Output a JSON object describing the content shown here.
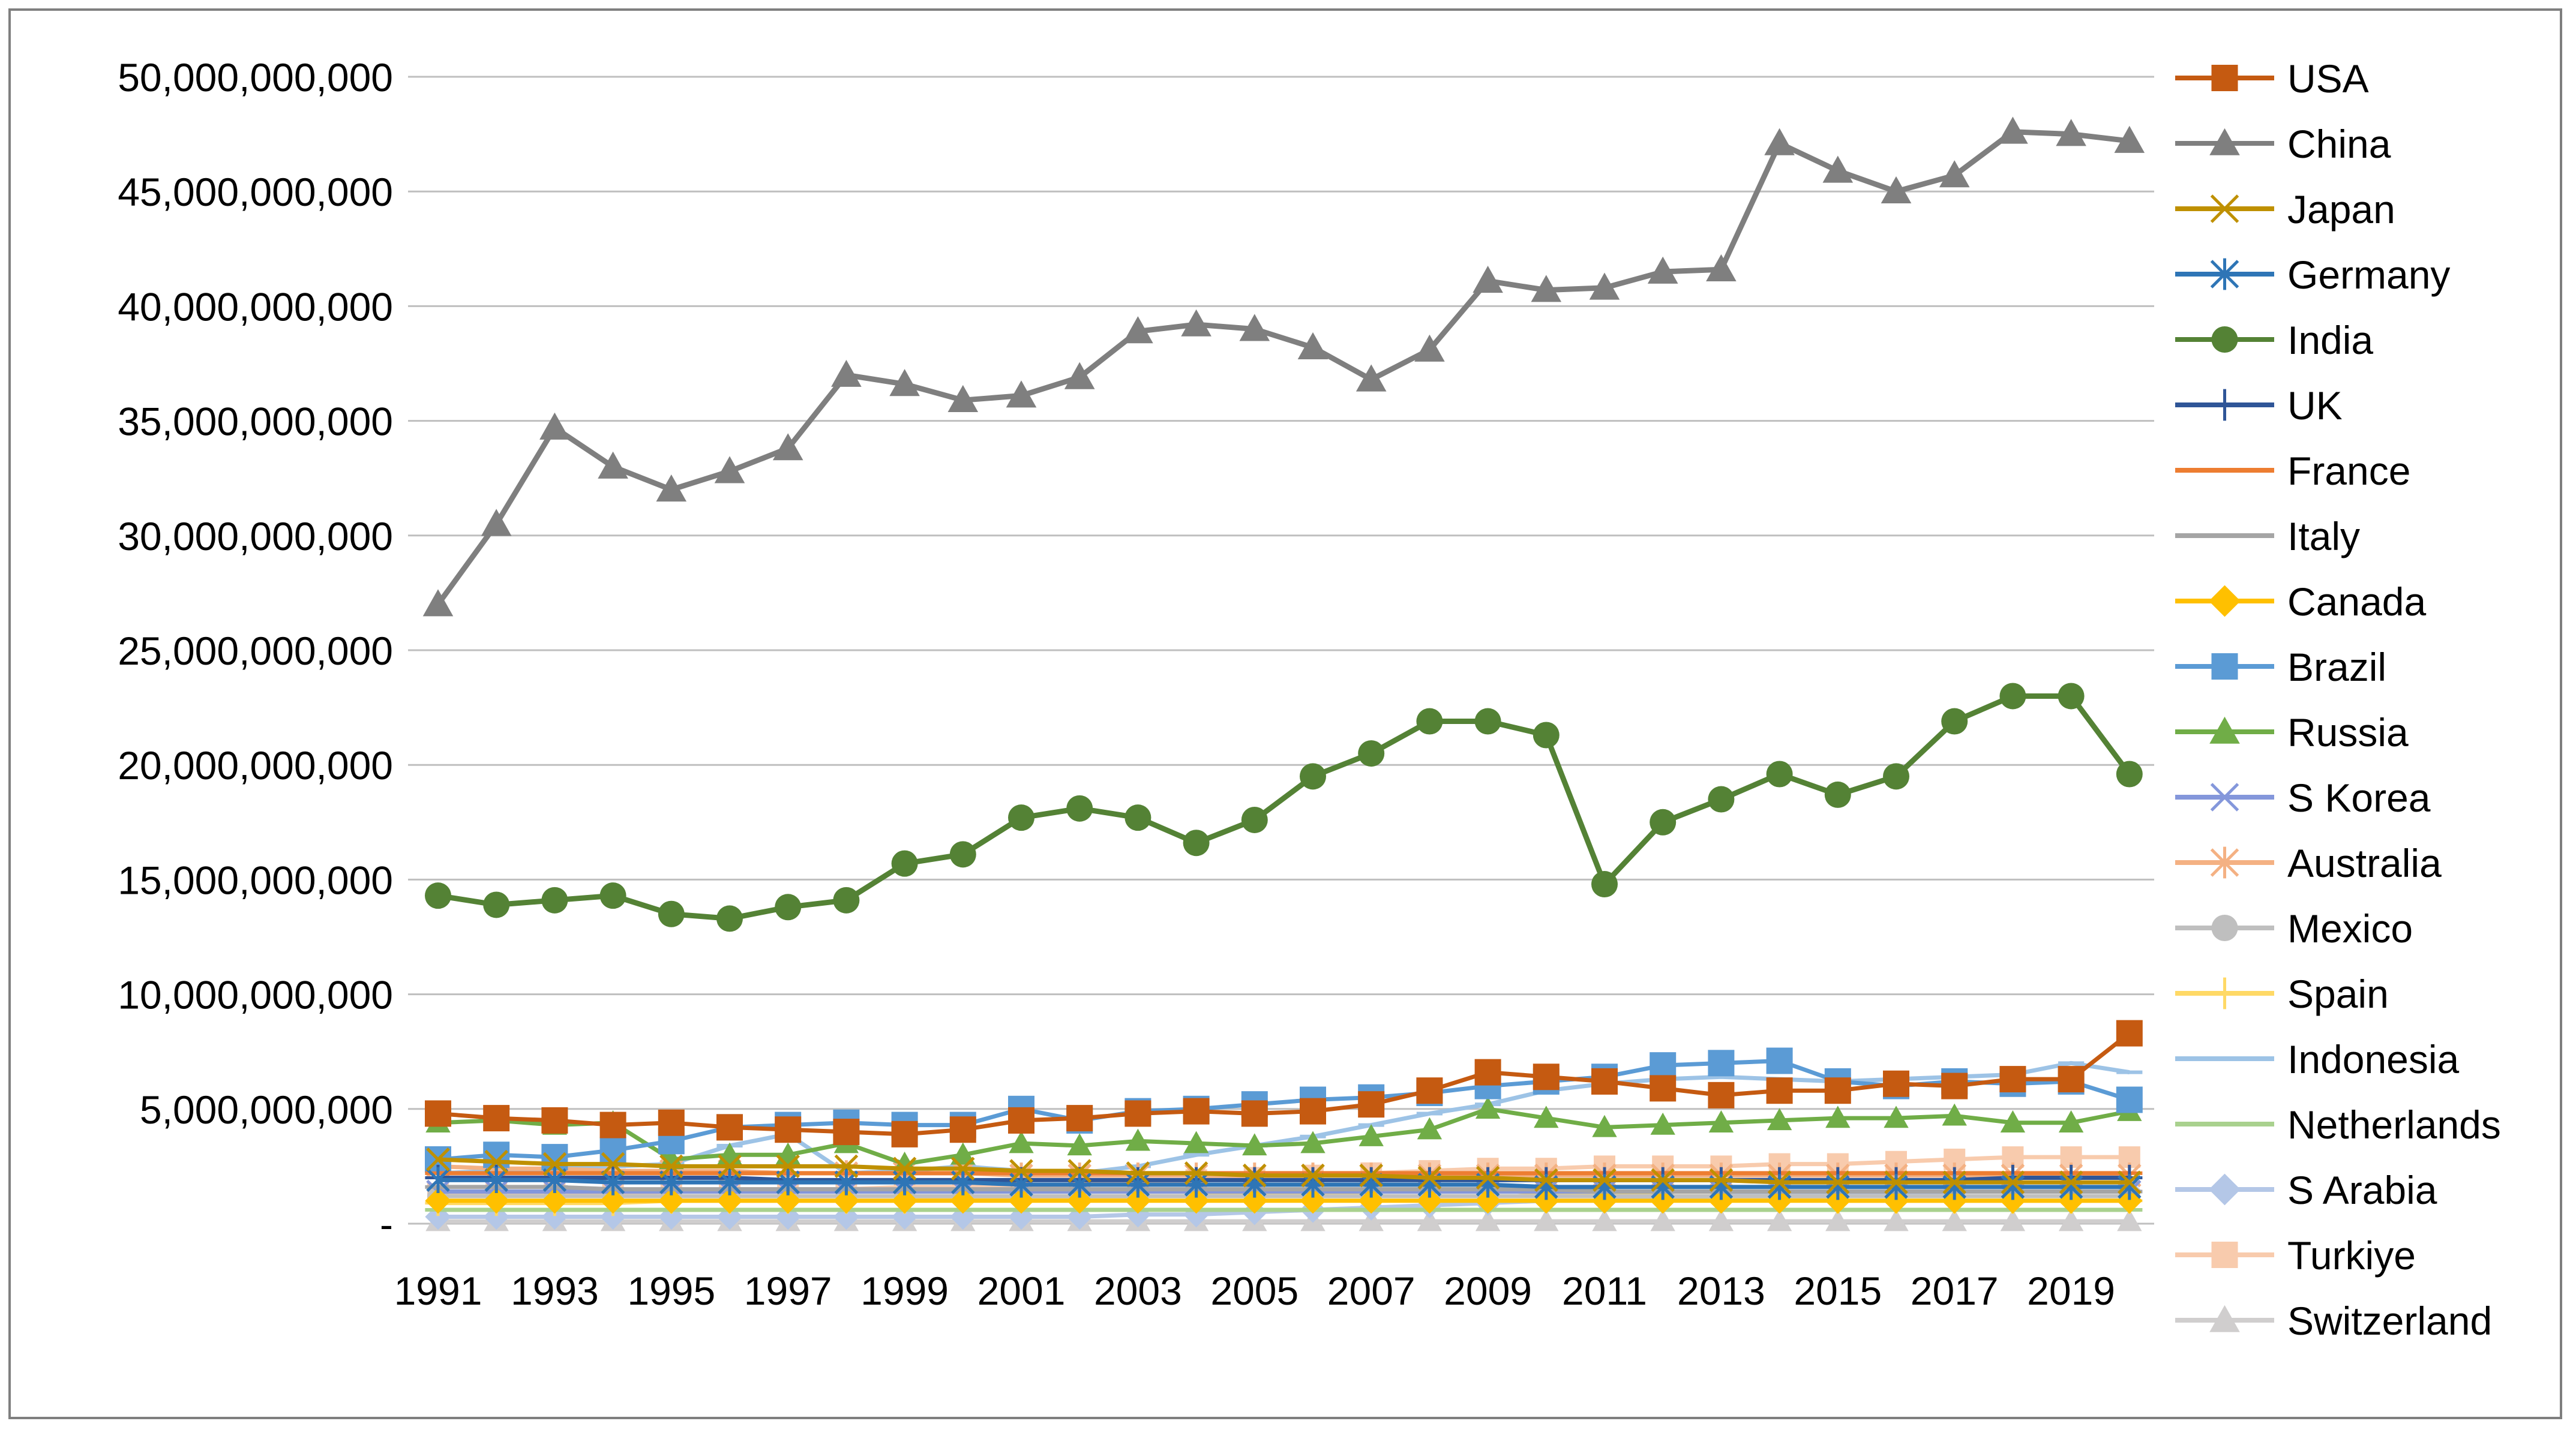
{
  "chart_data": {
    "type": "line",
    "title": "",
    "xlabel": "",
    "ylabel": "",
    "ylim": [
      0,
      50000000000
    ],
    "y_ticks": [
      {
        "value": 0,
        "label": "-"
      },
      {
        "value": 5000000000,
        "label": "5,000,000,000"
      },
      {
        "value": 10000000000,
        "label": "10,000,000,000"
      },
      {
        "value": 15000000000,
        "label": "15,000,000,000"
      },
      {
        "value": 20000000000,
        "label": "20,000,000,000"
      },
      {
        "value": 25000000000,
        "label": "25,000,000,000"
      },
      {
        "value": 30000000000,
        "label": "30,000,000,000"
      },
      {
        "value": 35000000000,
        "label": "35,000,000,000"
      },
      {
        "value": 40000000000,
        "label": "40,000,000,000"
      },
      {
        "value": 45000000000,
        "label": "45,000,000,000"
      },
      {
        "value": 50000000000,
        "label": "50,000,000,000"
      }
    ],
    "grid": true,
    "legend_position": "right",
    "x": [
      1991,
      1992,
      1993,
      1994,
      1995,
      1996,
      1997,
      1998,
      1999,
      2000,
      2001,
      2002,
      2003,
      2004,
      2005,
      2006,
      2007,
      2008,
      2009,
      2010,
      2011,
      2012,
      2013,
      2014,
      2015,
      2016,
      2017,
      2018,
      2019,
      2020
    ],
    "x_tick_labels": [
      "1991",
      "1993",
      "1995",
      "1997",
      "1999",
      "2001",
      "2003",
      "2005",
      "2007",
      "2009",
      "2011",
      "2013",
      "2015",
      "2017",
      "2019"
    ],
    "units": "billion",
    "series": [
      {
        "name": "USA",
        "color": "#C55A11",
        "marker": "square",
        "values": [
          4.8,
          4.6,
          4.5,
          4.3,
          4.4,
          4.2,
          4.1,
          4.0,
          3.9,
          4.1,
          4.5,
          4.6,
          4.8,
          4.9,
          4.8,
          4.9,
          5.2,
          5.8,
          6.6,
          6.4,
          6.2,
          5.9,
          5.6,
          5.8,
          5.8,
          6.1,
          6.0,
          6.3,
          6.3,
          8.3
        ]
      },
      {
        "name": "China",
        "color": "#7F7F7F",
        "marker": "triangle",
        "values": [
          27.0,
          30.5,
          34.7,
          33.0,
          32.0,
          32.8,
          33.8,
          37.0,
          36.6,
          35.9,
          36.1,
          36.9,
          38.9,
          39.2,
          39.0,
          38.2,
          36.8,
          38.1,
          41.1,
          40.7,
          40.8,
          41.5,
          41.6,
          47.1,
          45.9,
          45.0,
          45.7,
          47.6,
          47.5,
          47.2
        ]
      },
      {
        "name": "Japan",
        "color": "#BF9000",
        "marker": "x",
        "values": [
          2.8,
          2.7,
          2.6,
          2.6,
          2.5,
          2.5,
          2.5,
          2.5,
          2.4,
          2.4,
          2.3,
          2.3,
          2.2,
          2.2,
          2.1,
          2.1,
          2.1,
          2.0,
          2.0,
          1.9,
          1.9,
          1.9,
          1.9,
          1.8,
          1.8,
          1.8,
          1.8,
          1.8,
          1.8,
          1.8
        ]
      },
      {
        "name": "Germany",
        "color": "#2E75B6",
        "marker": "asterisk",
        "values": [
          1.9,
          1.9,
          1.9,
          1.8,
          1.8,
          1.8,
          1.8,
          1.8,
          1.8,
          1.8,
          1.7,
          1.7,
          1.7,
          1.7,
          1.7,
          1.7,
          1.7,
          1.7,
          1.7,
          1.6,
          1.6,
          1.6,
          1.6,
          1.6,
          1.6,
          1.6,
          1.6,
          1.6,
          1.6,
          1.6
        ]
      },
      {
        "name": "India",
        "color": "#548235",
        "marker": "circle",
        "values": [
          14.3,
          13.9,
          14.1,
          14.3,
          13.5,
          13.3,
          13.8,
          14.1,
          15.7,
          16.1,
          17.7,
          18.1,
          17.7,
          16.6,
          17.6,
          19.5,
          20.5,
          21.9,
          21.9,
          21.3,
          14.8,
          17.5,
          18.5,
          19.6,
          18.7,
          19.5,
          21.9,
          23.0,
          23.0,
          19.6
        ]
      },
      {
        "name": "UK",
        "color": "#2F5597",
        "marker": "plus",
        "values": [
          2.0,
          2.0,
          2.0,
          2.0,
          2.0,
          2.0,
          1.9,
          1.9,
          1.9,
          1.9,
          1.9,
          1.9,
          1.9,
          1.9,
          1.9,
          1.9,
          1.9,
          1.9,
          1.9,
          1.9,
          1.9,
          1.9,
          1.9,
          1.9,
          1.9,
          1.9,
          1.9,
          2.0,
          2.0,
          2.0
        ]
      },
      {
        "name": "France",
        "color": "#ED7D31",
        "marker": "dash",
        "values": [
          2.2,
          2.2,
          2.2,
          2.2,
          2.2,
          2.2,
          2.2,
          2.2,
          2.2,
          2.2,
          2.2,
          2.2,
          2.2,
          2.2,
          2.2,
          2.2,
          2.2,
          2.2,
          2.2,
          2.2,
          2.2,
          2.2,
          2.2,
          2.2,
          2.2,
          2.2,
          2.2,
          2.2,
          2.2,
          2.2
        ]
      },
      {
        "name": "Italy",
        "color": "#A5A5A5",
        "marker": "dash",
        "values": [
          1.6,
          1.6,
          1.6,
          1.5,
          1.5,
          1.5,
          1.5,
          1.5,
          1.5,
          1.5,
          1.5,
          1.5,
          1.5,
          1.5,
          1.5,
          1.5,
          1.5,
          1.5,
          1.5,
          1.5,
          1.4,
          1.4,
          1.4,
          1.4,
          1.4,
          1.4,
          1.4,
          1.4,
          1.4,
          1.4
        ]
      },
      {
        "name": "Canada",
        "color": "#FFC000",
        "marker": "diamond",
        "values": [
          1.0,
          1.0,
          1.0,
          1.0,
          1.0,
          1.0,
          1.0,
          1.0,
          1.0,
          1.0,
          1.0,
          1.0,
          1.0,
          1.0,
          1.0,
          1.0,
          1.0,
          1.0,
          1.0,
          1.0,
          1.0,
          1.0,
          1.0,
          1.0,
          1.0,
          1.0,
          1.0,
          1.0,
          1.0,
          1.0
        ]
      },
      {
        "name": "Brazil",
        "color": "#5B9BD5",
        "marker": "square",
        "values": [
          2.8,
          3.0,
          2.9,
          3.2,
          3.6,
          4.2,
          4.3,
          4.4,
          4.3,
          4.3,
          5.0,
          4.5,
          4.9,
          5.0,
          5.2,
          5.4,
          5.5,
          5.7,
          6.0,
          6.2,
          6.4,
          6.9,
          7.0,
          7.1,
          6.2,
          6.0,
          6.2,
          6.1,
          6.2,
          5.4
        ]
      },
      {
        "name": "Russia",
        "color": "#70AD47",
        "marker": "triangle",
        "values": [
          4.4,
          4.5,
          4.3,
          4.4,
          2.8,
          3.0,
          3.0,
          3.5,
          2.6,
          3.0,
          3.5,
          3.4,
          3.6,
          3.5,
          3.4,
          3.5,
          3.8,
          4.1,
          5.0,
          4.6,
          4.2,
          4.3,
          4.4,
          4.5,
          4.6,
          4.6,
          4.7,
          4.4,
          4.4,
          4.9
        ]
      },
      {
        "name": "S Korea",
        "color": "#8497DB",
        "marker": "x",
        "values": [
          1.4,
          1.4,
          1.4,
          1.4,
          1.4,
          1.4,
          1.4,
          1.4,
          1.4,
          1.4,
          1.4,
          1.4,
          1.4,
          1.4,
          1.4,
          1.4,
          1.4,
          1.4,
          1.4,
          1.4,
          1.4,
          1.4,
          1.4,
          1.4,
          1.4,
          1.4,
          1.4,
          1.4,
          1.4,
          1.4
        ]
      },
      {
        "name": "Australia",
        "color": "#F4B183",
        "marker": "asterisk",
        "values": [
          2.5,
          2.4,
          2.4,
          2.3,
          2.3,
          2.3,
          2.2,
          2.2,
          2.2,
          2.2,
          2.1,
          2.1,
          2.1,
          2.1,
          2.1,
          2.1,
          2.1,
          2.1,
          2.1,
          2.1,
          2.1,
          2.1,
          2.1,
          2.1,
          2.1,
          2.1,
          2.1,
          2.1,
          2.1,
          2.1
        ]
      },
      {
        "name": "Mexico",
        "color": "#BFBFBF",
        "marker": "circle",
        "values": [
          1.2,
          1.2,
          1.2,
          1.2,
          1.2,
          1.2,
          1.2,
          1.2,
          1.2,
          1.2,
          1.2,
          1.2,
          1.2,
          1.2,
          1.2,
          1.2,
          1.2,
          1.2,
          1.2,
          1.2,
          1.2,
          1.2,
          1.2,
          1.2,
          1.2,
          1.2,
          1.2,
          1.2,
          1.2,
          1.2
        ]
      },
      {
        "name": "Spain",
        "color": "#FFD966",
        "marker": "plus",
        "values": [
          0.9,
          0.9,
          0.9,
          0.9,
          1.0,
          1.0,
          1.0,
          1.0,
          1.0,
          1.1,
          1.1,
          1.1,
          1.2,
          1.2,
          1.3,
          1.3,
          1.4,
          1.4,
          1.5,
          1.3,
          1.3,
          1.2,
          1.2,
          1.1,
          1.0,
          1.0,
          1.0,
          1.0,
          1.0,
          1.0
        ]
      },
      {
        "name": "Indonesia",
        "color": "#9DC3E6",
        "marker": "dash",
        "values": [
          2.2,
          2.3,
          2.4,
          2.5,
          2.6,
          3.4,
          3.9,
          2.2,
          2.3,
          2.5,
          2.3,
          2.2,
          2.5,
          3.0,
          3.4,
          3.8,
          4.3,
          4.8,
          5.2,
          5.8,
          6.1,
          6.3,
          6.4,
          6.3,
          6.2,
          6.3,
          6.4,
          6.5,
          7.0,
          6.6
        ]
      },
      {
        "name": "Netherlands",
        "color": "#A9D18E",
        "marker": "dash",
        "values": [
          0.6,
          0.6,
          0.6,
          0.6,
          0.6,
          0.6,
          0.6,
          0.6,
          0.6,
          0.6,
          0.6,
          0.6,
          0.6,
          0.6,
          0.6,
          0.6,
          0.6,
          0.6,
          0.6,
          0.6,
          0.6,
          0.6,
          0.6,
          0.6,
          0.6,
          0.6,
          0.6,
          0.6,
          0.6,
          0.6
        ]
      },
      {
        "name": "S Arabia",
        "color": "#B4C7E7",
        "marker": "diamond",
        "values": [
          0.3,
          0.3,
          0.3,
          0.3,
          0.3,
          0.3,
          0.3,
          0.3,
          0.3,
          0.3,
          0.3,
          0.3,
          0.4,
          0.4,
          0.5,
          0.6,
          0.7,
          0.8,
          0.9,
          1.0,
          1.0,
          1.1,
          1.2,
          1.3,
          1.3,
          1.3,
          1.4,
          1.4,
          1.4,
          1.4
        ]
      },
      {
        "name": "Turkiye",
        "color": "#F8CBAD",
        "marker": "square",
        "values": [
          1.3,
          1.3,
          1.4,
          1.3,
          1.4,
          1.5,
          1.5,
          1.5,
          1.6,
          1.6,
          1.6,
          1.7,
          1.8,
          1.9,
          2.0,
          2.1,
          2.2,
          2.3,
          2.4,
          2.4,
          2.5,
          2.5,
          2.5,
          2.6,
          2.6,
          2.7,
          2.8,
          2.9,
          2.9,
          2.9
        ]
      },
      {
        "name": "Switzerland",
        "color": "#D0CECE",
        "marker": "triangle",
        "values": [
          0.1,
          0.1,
          0.1,
          0.1,
          0.1,
          0.1,
          0.1,
          0.1,
          0.1,
          0.1,
          0.1,
          0.1,
          0.1,
          0.1,
          0.1,
          0.1,
          0.1,
          0.1,
          0.1,
          0.1,
          0.1,
          0.1,
          0.1,
          0.1,
          0.1,
          0.1,
          0.1,
          0.1,
          0.1,
          0.1
        ]
      }
    ]
  }
}
